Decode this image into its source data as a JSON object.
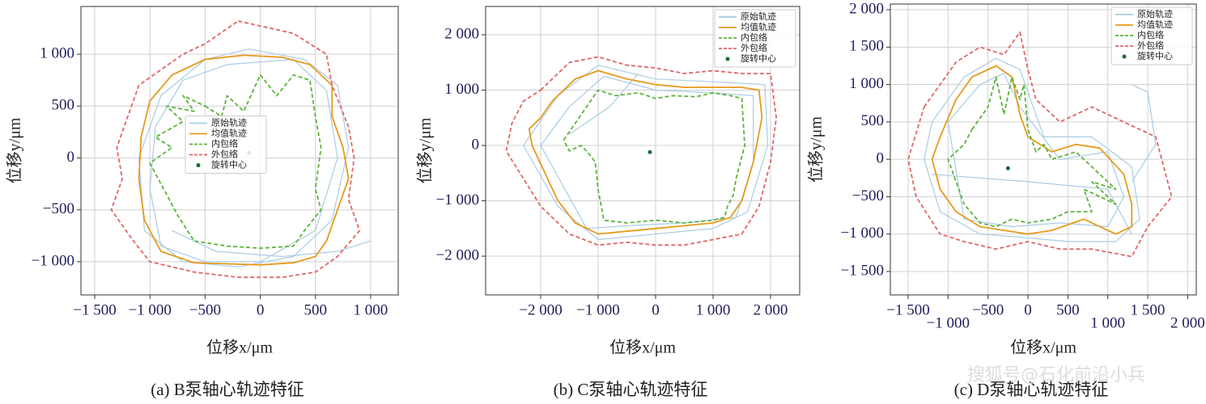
{
  "chart_data": [
    {
      "type": "line",
      "title": "(a) B泵轴心轨迹特征",
      "xlabel": "位移x/μm",
      "ylabel": "位移y/μm",
      "xlim": [
        -1625,
        1250
      ],
      "ylim": [
        -1320,
        1460
      ],
      "grid": true,
      "legend": "center",
      "xticks": [
        {
          "value": -1500,
          "label": "−1 500"
        },
        {
          "value": -1000,
          "label": "−1 000"
        },
        {
          "value": -500,
          "label": "−500"
        },
        0,
        500,
        {
          "value": 1000,
          "label": "1 000"
        }
      ],
      "yticks": [
        {
          "value": -1000,
          "label": "−1 000"
        },
        {
          "value": -500,
          "label": "−500"
        },
        0,
        500,
        {
          "value": 1000,
          "label": "1 000"
        }
      ],
      "series": [
        {
          "name": "原始轨迹",
          "color": "#a9cce3",
          "linestyle": "solid",
          "x": [
            -100,
            400,
            700,
            800,
            650,
            300,
            -200,
            -700,
            -1050,
            -1100,
            -900,
            -500,
            -100,
            null,
            -300,
            300,
            600,
            700,
            500,
            0,
            -500,
            -900,
            -1000,
            -950,
            -700,
            -300,
            null,
            -800,
            -400,
            200,
            700,
            1000
          ],
          "values": [
            1050,
            950,
            700,
            100,
            -600,
            -950,
            -1050,
            -1000,
            -700,
            0,
            600,
            950,
            1050,
            null,
            900,
            950,
            650,
            0,
            -700,
            -1000,
            -1000,
            -850,
            -300,
            300,
            750,
            900,
            null,
            -700,
            -900,
            -950,
            -900,
            -800
          ]
        },
        {
          "name": "均值轨迹",
          "color": "#e69a1c",
          "linestyle": "solid",
          "x": [
            -150,
            200,
            450,
            650,
            650,
            750,
            800,
            700,
            600,
            500,
            300,
            0,
            -300,
            -600,
            -900,
            -1050,
            -1100,
            -1080,
            -1000,
            -800,
            -500,
            -150
          ],
          "values": [
            990,
            970,
            900,
            700,
            400,
            100,
            -200,
            -500,
            -800,
            -950,
            -1010,
            -1030,
            -1020,
            -1010,
            -900,
            -600,
            -200,
            200,
            550,
            800,
            950,
            990
          ]
        },
        {
          "name": "内包络",
          "color": "#5db33a",
          "linestyle": "dashed",
          "x": [
            -500,
            -350,
            -300,
            -150,
            0,
            150,
            300,
            450,
            500,
            550,
            500,
            550,
            400,
            300,
            0,
            -300,
            -600,
            -750,
            -850,
            -1000,
            -800,
            -950,
            -700,
            -850,
            -600,
            -700,
            -500
          ],
          "values": [
            500,
            400,
            600,
            450,
            800,
            600,
            800,
            750,
            400,
            100,
            -300,
            -500,
            -700,
            -850,
            -870,
            -850,
            -800,
            -550,
            -350,
            -50,
            100,
            200,
            350,
            500,
            450,
            600,
            500
          ]
        },
        {
          "name": "外包络",
          "color": "#e06666",
          "linestyle": "dashed",
          "x": [
            -200,
            300,
            600,
            650,
            800,
            850,
            800,
            900,
            700,
            500,
            200,
            -200,
            -600,
            -1000,
            -1150,
            -1350,
            -1250,
            -1300,
            -1200,
            -1100,
            -700,
            -500,
            -200
          ],
          "values": [
            1320,
            1200,
            1000,
            700,
            300,
            0,
            -400,
            -700,
            -950,
            -1100,
            -1150,
            -1150,
            -1100,
            -1000,
            -800,
            -500,
            -200,
            100,
            400,
            700,
            1000,
            1100,
            1320
          ]
        },
        {
          "name": "旋转中心",
          "color": "#1a6b2e",
          "linestyle": "point",
          "x": [
            -100
          ],
          "values": [
            50
          ]
        }
      ]
    },
    {
      "type": "line",
      "title": "(b) C泵轴心轨迹特征",
      "xlabel": "位移x/μm",
      "ylabel": "位移y/μm",
      "xlim": [
        -2958,
        2507
      ],
      "ylim": [
        -2700,
        2511
      ],
      "grid": true,
      "legend": "upper right",
      "xticks": [
        {
          "value": -2000,
          "label": "−2 000"
        },
        {
          "value": -1000,
          "label": "−1 000"
        },
        0,
        {
          "value": 1000,
          "label": "1 000"
        },
        {
          "value": 2000,
          "label": "2 000"
        }
      ],
      "yticks": [
        {
          "value": -2000,
          "label": "−2 000"
        },
        {
          "value": -1000,
          "label": "−1 000"
        },
        0,
        {
          "value": 1000,
          "label": "1 000"
        },
        {
          "value": 2000,
          "label": "2 000"
        }
      ],
      "series": [
        {
          "name": "原始轨迹",
          "color": "#a9cce3",
          "linestyle": "solid",
          "x": [
            -1700,
            -1000,
            0,
            1000,
            1900,
            1950,
            1600,
            1000,
            0,
            -1000,
            -1700,
            -2300,
            -1700,
            null,
            -1500,
            -900,
            0,
            1000,
            1700,
            1700,
            1400,
            500,
            -500,
            -1200,
            -2000,
            -1500,
            null,
            -1500,
            -800,
            -300
          ],
          "values": [
            900,
            1450,
            1200,
            1150,
            1100,
            0,
            -1200,
            -1500,
            -1600,
            -1700,
            -1100,
            0,
            900,
            null,
            700,
            1250,
            1000,
            950,
            900,
            -300,
            -1300,
            -1400,
            -1450,
            -1500,
            0,
            700,
            null,
            200,
            700,
            1300
          ]
        },
        {
          "name": "均值轨迹",
          "color": "#e69a1c",
          "linestyle": "solid",
          "x": [
            -1800,
            -1400,
            -1000,
            -500,
            0,
            500,
            1000,
            1500,
            1800,
            1850,
            1700,
            1500,
            1300,
            1000,
            500,
            0,
            -500,
            -1000,
            -1400,
            -1700,
            -2150,
            -2200,
            -2000,
            -1800
          ],
          "values": [
            800,
            1200,
            1350,
            1200,
            1100,
            1050,
            1050,
            1050,
            1000,
            500,
            -300,
            -1000,
            -1300,
            -1400,
            -1450,
            -1500,
            -1550,
            -1600,
            -1400,
            -1000,
            0,
            300,
            500,
            800
          ]
        },
        {
          "name": "内包络",
          "color": "#5db33a",
          "linestyle": "dashed",
          "x": [
            -1600,
            -1200,
            -1000,
            -700,
            -300,
            0,
            300,
            700,
            1000,
            1300,
            1500,
            1550,
            1400,
            1350,
            1250,
            1200,
            1000,
            500,
            0,
            -500,
            -900,
            -1000,
            -1050,
            -1200,
            -1300,
            -1500,
            -1600
          ],
          "values": [
            100,
            700,
            1000,
            900,
            950,
            850,
            900,
            880,
            950,
            900,
            850,
            0,
            -600,
            -900,
            -1100,
            -1300,
            -1350,
            -1400,
            -1350,
            -1400,
            -1350,
            -800,
            -300,
            -100,
            0,
            -100,
            100
          ]
        },
        {
          "name": "外包络",
          "color": "#e06666",
          "linestyle": "dashed",
          "x": [
            -2000,
            -1500,
            -1000,
            -500,
            0,
            500,
            1000,
            1500,
            2000,
            2100,
            2000,
            1800,
            1500,
            1000,
            500,
            0,
            -500,
            -1000,
            -1500,
            -2000,
            -2600,
            -2500,
            -2300,
            -2000
          ],
          "values": [
            1000,
            1500,
            1600,
            1450,
            1400,
            1300,
            1350,
            1300,
            1300,
            500,
            -300,
            -1100,
            -1600,
            -1700,
            -1800,
            -1800,
            -1750,
            -1800,
            -1600,
            -1100,
            -100,
            400,
            800,
            1000
          ]
        },
        {
          "name": "旋转中心",
          "color": "#1a6b2e",
          "linestyle": "point",
          "x": [
            -100
          ],
          "values": [
            -120
          ]
        }
      ]
    },
    {
      "type": "line",
      "title": "(c) D泵轴心轨迹特征",
      "xlabel": "位移x/μm",
      "ylabel": "位移y/μm",
      "xlim": [
        -1723,
        2108
      ],
      "ylim": [
        -1813,
        2076
      ],
      "grid": true,
      "legend": "upper right",
      "xticks": [
        {
          "value": -1500,
          "label": "−1 500"
        },
        {
          "value": -1000,
          "label": "−1 000"
        },
        {
          "value": -500,
          "label": "−500"
        },
        0,
        500,
        {
          "value": 1000,
          "label": "1 000"
        },
        {
          "value": 1500,
          "label": "1 500"
        },
        {
          "value": 2000,
          "label": "2 000"
        }
      ],
      "yticks": [
        {
          "value": -1500,
          "label": "−1 500"
        },
        {
          "value": -1000,
          "label": "−1 000"
        },
        {
          "value": -500,
          "label": "−500"
        },
        0,
        500,
        {
          "value": 1000,
          "label": "1 000"
        },
        {
          "value": 1500,
          "label": "1 500"
        },
        {
          "value": 2000,
          "label": "2 000"
        }
      ],
      "series": [
        {
          "name": "原始轨迹",
          "color": "#a9cce3",
          "linestyle": "solid",
          "x": [
            -1200,
            -800,
            -400,
            -100,
            200,
            800,
            1300,
            1400,
            1100,
            500,
            0,
            -600,
            -1100,
            -1300,
            -1200,
            null,
            -1000,
            -600,
            -300,
            -100,
            400,
            1000,
            1200,
            1000,
            400,
            -200,
            -800,
            -1000,
            null,
            -1200,
            0,
            1000,
            1300,
            null,
            1300,
            1600,
            1500,
            1300
          ],
          "values": [
            500,
            1100,
            1350,
            1200,
            300,
            300,
            -100,
            -800,
            -1100,
            -1100,
            -1050,
            -1000,
            -700,
            0,
            500,
            null,
            500,
            1000,
            1150,
            700,
            0,
            100,
            -500,
            -900,
            -850,
            -900,
            -800,
            500,
            null,
            -200,
            -300,
            -400,
            -1000,
            null,
            -300,
            200,
            900,
            1000
          ]
        },
        {
          "name": "均值轨迹",
          "color": "#e69a1c",
          "linestyle": "solid",
          "x": [
            -1100,
            -900,
            -700,
            -400,
            -200,
            -100,
            0,
            300,
            600,
            900,
            1200,
            1300,
            1300,
            1100,
            700,
            300,
            0,
            -300,
            -600,
            -900,
            -1100,
            -1200,
            -1100
          ],
          "values": [
            300,
            800,
            1100,
            1250,
            1100,
            600,
            300,
            100,
            200,
            150,
            -200,
            -600,
            -900,
            -1000,
            -800,
            -950,
            -1000,
            -950,
            -900,
            -700,
            -400,
            0,
            300
          ]
        },
        {
          "name": "内包络",
          "color": "#5db33a",
          "linestyle": "dashed",
          "x": [
            -700,
            -500,
            -400,
            -300,
            -200,
            -100,
            -50,
            0,
            100,
            200,
            300,
            600,
            900,
            1100,
            800,
            1100,
            700,
            800,
            500,
            300,
            0,
            -200,
            -400,
            -600,
            -800,
            -900,
            -1000,
            -800,
            -700
          ],
          "values": [
            400,
            700,
            1100,
            600,
            1100,
            800,
            1000,
            400,
            100,
            200,
            0,
            100,
            -200,
            -400,
            -300,
            -600,
            -400,
            -700,
            -700,
            -800,
            -850,
            -800,
            -900,
            -850,
            -600,
            -300,
            0,
            200,
            400
          ]
        },
        {
          "name": "外包络",
          "color": "#e06666",
          "linestyle": "dashed",
          "x": [
            -1300,
            -1100,
            -900,
            -600,
            -300,
            -100,
            0,
            100,
            400,
            800,
            1200,
            1600,
            1800,
            1500,
            1300,
            800,
            400,
            0,
            -400,
            -800,
            -1100,
            -1400,
            -1500,
            -1300
          ],
          "values": [
            700,
            1000,
            1300,
            1500,
            1400,
            1700,
            1200,
            800,
            500,
            700,
            500,
            300,
            -500,
            -900,
            -1300,
            -1200,
            -1200,
            -1100,
            -1200,
            -1100,
            -1000,
            -500,
            0,
            700
          ]
        },
        {
          "name": "旋转中心",
          "color": "#1a6b2e",
          "linestyle": "point",
          "x": [
            -250
          ],
          "values": [
            -120
          ]
        }
      ]
    }
  ],
  "watermark": "搜狐号@石化前沿小兵"
}
